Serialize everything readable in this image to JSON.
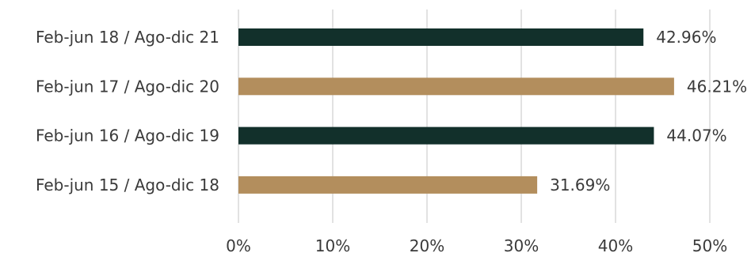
{
  "chart_data": {
    "type": "bar",
    "orientation": "horizontal",
    "categories": [
      "Feb-jun 18 / Ago-dic 21",
      "Feb-jun 17 / Ago-dic 20",
      "Feb-jun 16 / Ago-dic 19",
      "Feb-jun 15 / Ago-dic 18"
    ],
    "values": [
      42.96,
      46.21,
      44.07,
      31.69
    ],
    "data_labels": [
      "42.96%",
      "46.21%",
      "44.07%",
      "31.69%"
    ],
    "bar_colors": [
      "#12302b",
      "#b38e5d",
      "#12302b",
      "#b38e5d"
    ],
    "x_ticks": [
      0,
      10,
      20,
      30,
      40,
      50
    ],
    "x_tick_labels": [
      "0%",
      "10%",
      "20%",
      "30%",
      "40%",
      "50%"
    ],
    "xlim": [
      0,
      50
    ],
    "title": "",
    "xlabel": "",
    "ylabel": "",
    "grid": "vertical",
    "legend": "none"
  }
}
